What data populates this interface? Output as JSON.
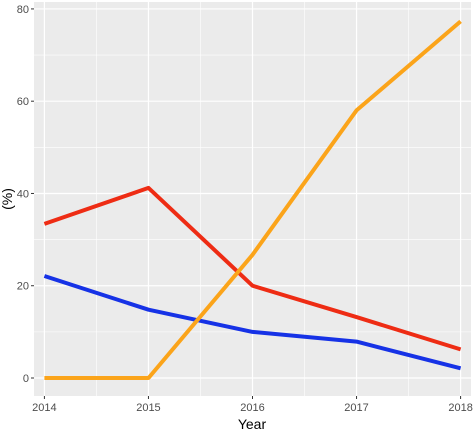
{
  "chart_data": {
    "type": "line",
    "title": "",
    "xlabel": "Year",
    "ylabel": "(%)",
    "x": [
      2014,
      2015,
      2016,
      2017,
      2018
    ],
    "x_tick_labels": [
      "2014",
      "2015",
      "2016",
      "2017",
      "2018"
    ],
    "y_ticks": [
      0,
      20,
      40,
      60,
      80
    ],
    "y_tick_labels": [
      "0",
      "20",
      "40",
      "60",
      "80"
    ],
    "xlim": [
      2013.9,
      2018.1
    ],
    "ylim": [
      -3.9,
      81.5
    ],
    "grid": true,
    "legend": "none",
    "panel_background": "#EBEBEB",
    "series": [
      {
        "color": "#EE2C14",
        "values": [
          33.4,
          41.2,
          20.0,
          13.2,
          6.2
        ]
      },
      {
        "color": "#1632E6",
        "values": [
          22.1,
          14.8,
          10.0,
          7.9,
          2.1
        ]
      },
      {
        "color": "#FBA41A",
        "values": [
          0.0,
          0.0,
          26.7,
          58.0,
          77.3
        ]
      }
    ]
  }
}
